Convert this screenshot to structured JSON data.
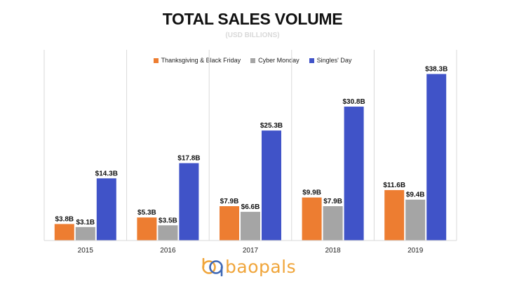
{
  "chart_data": {
    "type": "bar",
    "title": "TOTAL SALES VOLUME",
    "subtitle": "(USD BILLIONS)",
    "categories": [
      "2015",
      "2016",
      "2017",
      "2018",
      "2019"
    ],
    "series": [
      {
        "name": "Thanksgiving & Black Friday",
        "color": "#ed7d31",
        "values": [
          3.8,
          5.3,
          7.9,
          9.9,
          11.6
        ],
        "labels": [
          "$3.8B",
          "$5.3B",
          "$7.9B",
          "$9.9B",
          "$11.6B"
        ]
      },
      {
        "name": "Cyber Monday",
        "color": "#a5a5a5",
        "values": [
          3.1,
          3.5,
          6.6,
          7.9,
          9.4
        ],
        "labels": [
          "$3.1B",
          "$3.5B",
          "$6.6B",
          "$7.9B",
          "$9.4B"
        ]
      },
      {
        "name": "Singles' Day",
        "color": "#4053c8",
        "values": [
          14.3,
          17.8,
          25.3,
          30.8,
          38.3
        ],
        "labels": [
          "$14.3B",
          "$17.8B",
          "$25.3B",
          "$30.8B",
          "$38.3B"
        ]
      }
    ],
    "ylim": [
      0,
      40
    ],
    "legend_position": "top",
    "grid": false
  },
  "logo": {
    "text": "baopals",
    "icon": "baopals-logo-icon"
  }
}
